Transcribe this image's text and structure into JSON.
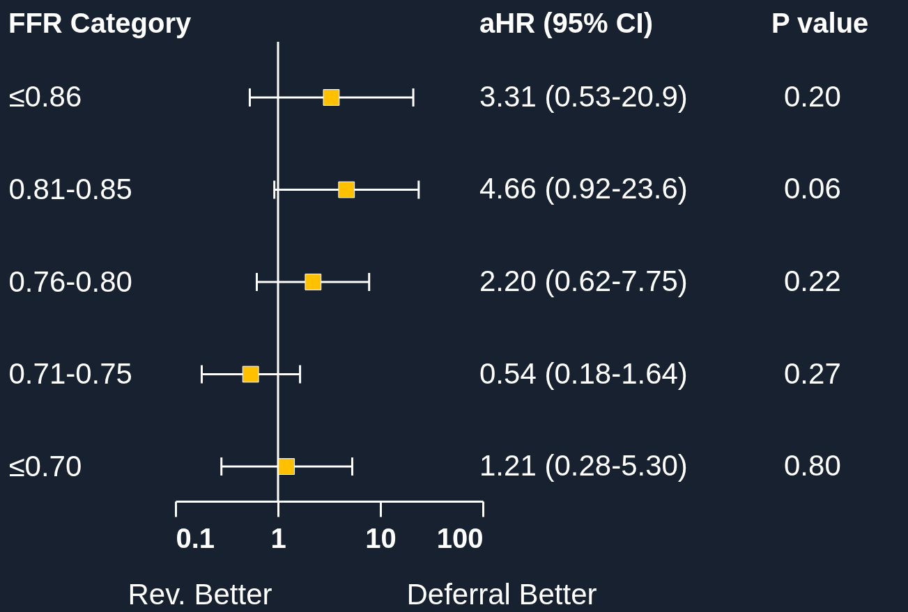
{
  "chart_data": {
    "type": "scatter",
    "orientation": "horizontal",
    "ylabel": "FFR Category",
    "categories": [
      "≤0.86",
      "0.81-0.85",
      "0.76-0.80",
      "0.71-0.75",
      "≤0.70"
    ],
    "values": [
      3.31,
      4.66,
      2.2,
      0.54,
      1.21
    ],
    "errors": [
      [
        0.53,
        20.9
      ],
      [
        0.92,
        23.6
      ],
      [
        0.62,
        7.75
      ],
      [
        0.18,
        1.64
      ],
      [
        0.28,
        5.3
      ]
    ],
    "value_labels": [
      "3.31 (0.53-20.9)",
      "4.66 (0.92-23.6)",
      "2.20 (0.62-7.75)",
      "0.54 (0.18-1.64)",
      "1.21 (0.28-5.30)"
    ],
    "color": "#ffc000",
    "marker": "square",
    "log": "x",
    "grid": false,
    "xlim": [
      0.1,
      100
    ],
    "xticks": [
      0.1,
      1,
      10,
      100
    ],
    "ref_lines": [
      {
        "axis": "x",
        "value": 1,
        "color": "#ffffff"
      }
    ],
    "annotations": [
      "aHR   (95% CI)",
      "P value",
      "0.20",
      "0.06",
      "0.22",
      "0.27",
      "0.80",
      "Rev. Better",
      "Deferral Better"
    ]
  }
}
